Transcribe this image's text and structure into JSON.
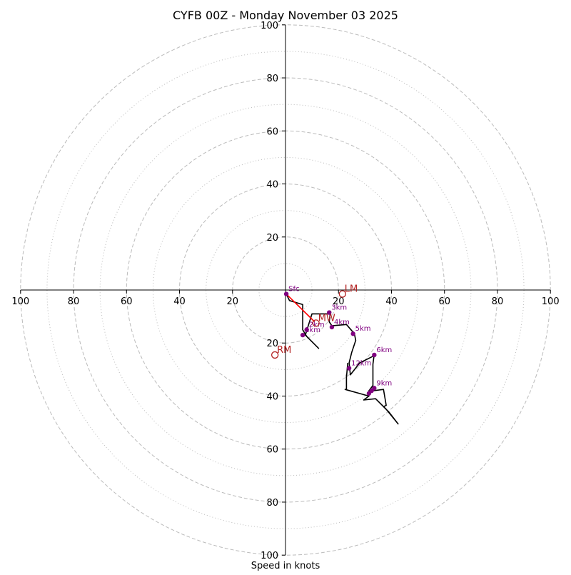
{
  "chart_data": {
    "type": "scatter",
    "title": "CYFB 00Z - Monday November 03 2025",
    "xlabel": "Speed in knots",
    "ylabel": "",
    "range": 100,
    "ring_major": [
      20,
      40,
      60,
      80,
      100
    ],
    "ring_minor": [
      10,
      30,
      50,
      70,
      90
    ],
    "x_ticks": [
      "100",
      "80",
      "60",
      "40",
      "20",
      "20",
      "40",
      "60",
      "80",
      "100"
    ],
    "y_ticks": [
      "100",
      "80",
      "60",
      "40",
      "20",
      "20",
      "40",
      "60",
      "80",
      "100"
    ],
    "x_tick_values": [
      -100,
      -80,
      -60,
      -40,
      -20,
      20,
      40,
      60,
      80,
      100
    ],
    "y_tick_values": [
      100,
      80,
      60,
      40,
      20,
      -20,
      -40,
      -60,
      -80,
      -100
    ],
    "colors": {
      "hodograph": "#000000",
      "low_level": "#ff0000",
      "height_points": "#800080",
      "motion": "#b22222",
      "ring": "#bbbbbb"
    },
    "series": [
      {
        "name": "hodograph",
        "points": [
          [
            0.3,
            -1.5
          ],
          [
            1.5,
            -4
          ],
          [
            6.5,
            -5.5
          ],
          [
            6.5,
            -15
          ],
          [
            8,
            -17.5
          ],
          [
            12.5,
            -22
          ],
          [
            7.5,
            -17
          ],
          [
            10,
            -9
          ],
          [
            17,
            -9
          ],
          [
            17,
            -8
          ],
          [
            16.5,
            -12
          ],
          [
            17.5,
            -13.5
          ],
          [
            23,
            -13
          ],
          [
            26,
            -16.5
          ],
          [
            26.5,
            -19
          ],
          [
            25,
            -23.5
          ],
          [
            24,
            -27.5
          ],
          [
            24.5,
            -32
          ],
          [
            28,
            -27.5
          ],
          [
            33,
            -25
          ],
          [
            33.5,
            -24
          ],
          [
            33,
            -28
          ],
          [
            33,
            -36
          ],
          [
            31.5,
            -38
          ],
          [
            33,
            -38
          ],
          [
            37,
            -37.5
          ],
          [
            38,
            -43.5
          ],
          [
            37,
            -44
          ],
          [
            39,
            -46
          ],
          [
            42.5,
            -50.5
          ],
          [
            38,
            -45
          ],
          [
            34,
            -41
          ],
          [
            29.5,
            -41.5
          ],
          [
            31.5,
            -40
          ],
          [
            22.5,
            -37.5
          ],
          [
            23,
            -37.5
          ],
          [
            23,
            -32
          ],
          [
            23,
            -33
          ],
          [
            23.5,
            -27.5
          ],
          [
            23.5,
            -27.5
          ]
        ]
      },
      {
        "name": "low-level shear",
        "points": [
          [
            0.3,
            -1.5
          ],
          [
            11,
            -12
          ]
        ]
      }
    ],
    "height_points": [
      {
        "label": "Sfc",
        "x": 0.3,
        "y": -1.5
      },
      {
        "label": "1km",
        "x": 6.5,
        "y": -17
      },
      {
        "label": "2km",
        "x": 8,
        "y": -15
      },
      {
        "label": "3km",
        "x": 16.5,
        "y": -8.5
      },
      {
        "label": "4km",
        "x": 17.5,
        "y": -14
      },
      {
        "label": "5km",
        "x": 25.5,
        "y": -16.5
      },
      {
        "label": "6km",
        "x": 33.5,
        "y": -24.5
      },
      {
        "label": "9km",
        "x": 33.5,
        "y": -37
      },
      {
        "label": "",
        "x": 32.5,
        "y": -38
      },
      {
        "label": "",
        "x": 31.5,
        "y": -39
      },
      {
        "label": "12km",
        "x": 24,
        "y": -29.5
      }
    ],
    "storm_motion": [
      {
        "label": "LM",
        "x": 21.5,
        "y": -1.5
      },
      {
        "label": "MW",
        "x": 11.5,
        "y": -12.5
      },
      {
        "label": "RM",
        "x": -4,
        "y": -24.5
      }
    ]
  }
}
